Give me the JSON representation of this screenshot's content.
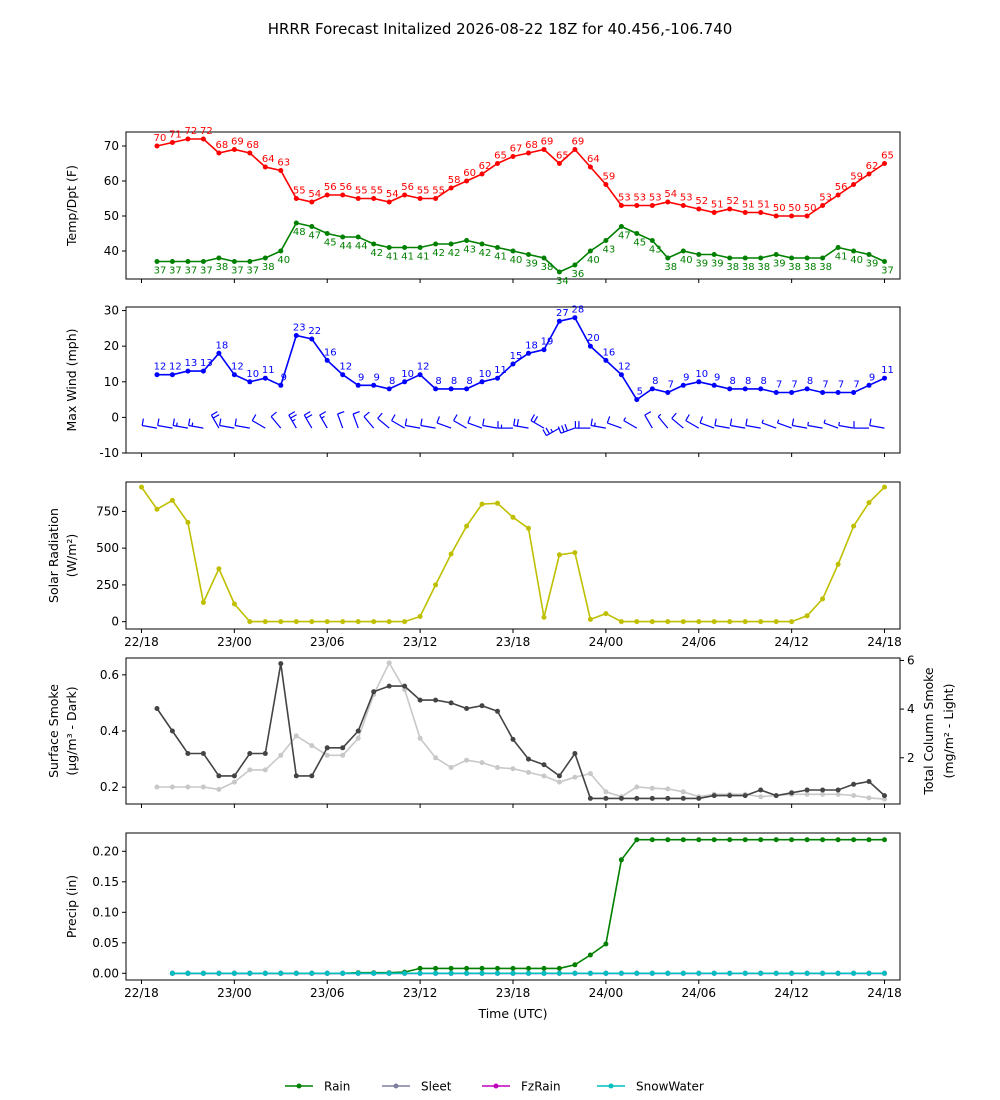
{
  "title": "HRRR Forecast Initalized 2026-08-22 18Z for 40.456,-106.740",
  "colors": {
    "temp": "#ff0000",
    "dew": "#008000",
    "wind": "#0000ff",
    "solar": "#bfbf00",
    "smoke_dark": "#444444",
    "smoke_light": "#c8c8c8",
    "rain": "#008000",
    "sleet": "#7f7f9f",
    "fzrain": "#bf00bf",
    "snow": "#00bfbf"
  },
  "x_ticks": [
    "22/18",
    "23/00",
    "23/06",
    "23/12",
    "23/18",
    "24/00",
    "24/06",
    "24/12",
    "24/18"
  ],
  "x_axis_label": "Time (UTC)",
  "chart_data": [
    {
      "type": "line",
      "ylabel": "Temp/Dpt (F)",
      "ylim": [
        32,
        74
      ],
      "yticks": [
        40,
        50,
        60,
        70
      ],
      "x": [
        1,
        2,
        3,
        4,
        5,
        6,
        7,
        8,
        9,
        10,
        11,
        12,
        13,
        14,
        15,
        16,
        17,
        18,
        19,
        20,
        21,
        22,
        23,
        24,
        25,
        26,
        27,
        28,
        29,
        30,
        31,
        32,
        33,
        34,
        35,
        36,
        37,
        38,
        39,
        40,
        41,
        42,
        43,
        44,
        45,
        46,
        47,
        48
      ],
      "series": [
        {
          "key": "temp",
          "labels": "above",
          "values": [
            70,
            71,
            72,
            72,
            68,
            69,
            68,
            64,
            63,
            55,
            54,
            56,
            56,
            55,
            55,
            54,
            56,
            55,
            55,
            58,
            60,
            62,
            65,
            67,
            68,
            69,
            65,
            69,
            64,
            59,
            53,
            53,
            53,
            54,
            53,
            52,
            51,
            52,
            51,
            51,
            50,
            50,
            50,
            53,
            56,
            59,
            62,
            65
          ]
        },
        {
          "key": "dew",
          "labels": "below",
          "values": [
            37,
            37,
            37,
            37,
            38,
            37,
            37,
            38,
            40,
            48,
            47,
            45,
            44,
            44,
            42,
            41,
            41,
            41,
            42,
            42,
            43,
            42,
            41,
            40,
            39,
            38,
            34,
            36,
            40,
            43,
            47,
            45,
            43,
            38,
            40,
            39,
            39,
            38,
            38,
            38,
            39,
            38,
            38,
            38,
            41,
            40,
            39,
            37
          ]
        }
      ]
    },
    {
      "type": "line",
      "ylabel": "Max Wind (mph)",
      "ylim": [
        -10,
        31
      ],
      "yticks": [
        -10,
        0,
        10,
        20,
        30
      ],
      "x": [
        1,
        2,
        3,
        4,
        5,
        6,
        7,
        8,
        9,
        10,
        11,
        12,
        13,
        14,
        15,
        16,
        17,
        18,
        19,
        20,
        21,
        22,
        23,
        24,
        25,
        26,
        27,
        28,
        29,
        30,
        31,
        32,
        33,
        34,
        35,
        36,
        37,
        38,
        39,
        40,
        41,
        42,
        43,
        44,
        45,
        46,
        47,
        48
      ],
      "series": [
        {
          "key": "wind",
          "labels": "above",
          "values": [
            12,
            12,
            13,
            13,
            18,
            12,
            10,
            11,
            9,
            23,
            22,
            16,
            12,
            9,
            9,
            8,
            10,
            12,
            8,
            8,
            8,
            10,
            11,
            15,
            18,
            19,
            27,
            28,
            20,
            16,
            12,
            5,
            8,
            7,
            9,
            10,
            9,
            8,
            8,
            8,
            7,
            7,
            8,
            7,
            7,
            7,
            9,
            11
          ]
        }
      ],
      "barb_dir": [
        280,
        280,
        280,
        280,
        330,
        280,
        280,
        300,
        320,
        330,
        330,
        330,
        340,
        340,
        320,
        310,
        300,
        280,
        280,
        290,
        300,
        290,
        280,
        270,
        280,
        300,
        240,
        250,
        270,
        280,
        290,
        300,
        330,
        320,
        310,
        300,
        290,
        280,
        280,
        280,
        290,
        290,
        280,
        280,
        290,
        280,
        270,
        280
      ]
    },
    {
      "type": "line",
      "ylabel": "Solar Radiation",
      "yunit": "(W/m²)",
      "ylim": [
        -50,
        950
      ],
      "yticks": [
        0,
        250,
        500,
        750
      ],
      "x": [
        0,
        1,
        2,
        3,
        4,
        5,
        6,
        7,
        8,
        9,
        10,
        11,
        12,
        13,
        14,
        15,
        16,
        17,
        18,
        19,
        20,
        21,
        22,
        23,
        24,
        25,
        26,
        27,
        28,
        29,
        30,
        31,
        32,
        33,
        34,
        35,
        36,
        37,
        38,
        39,
        40,
        41,
        42,
        43,
        44,
        45,
        46,
        47,
        48
      ],
      "series": [
        {
          "key": "solar",
          "labels": "none",
          "values": [
            915,
            765,
            825,
            675,
            130,
            360,
            120,
            0,
            0,
            0,
            0,
            0,
            0,
            0,
            0,
            0,
            0,
            0,
            35,
            250,
            460,
            650,
            800,
            805,
            710,
            635,
            30,
            455,
            470,
            15,
            55,
            0,
            0,
            0,
            0,
            0,
            0,
            0,
            0,
            0,
            0,
            0,
            0,
            40,
            155,
            390,
            650,
            810,
            915
          ]
        }
      ]
    },
    {
      "type": "line",
      "ylabel": "Surface Smoke",
      "yunit": "(μg/m³ - Dark)",
      "ylabel_right": "Total Column Smoke",
      "yunit_right": "(mg/m² - Light)",
      "ylim": [
        0.14,
        0.66
      ],
      "yticks": [
        0.2,
        0.4,
        0.6
      ],
      "ylim_right": [
        0.1,
        6.1
      ],
      "yticks_right": [
        2,
        4,
        6
      ],
      "x": [
        1,
        2,
        3,
        4,
        5,
        6,
        7,
        8,
        9,
        10,
        11,
        12,
        13,
        14,
        15,
        16,
        17,
        18,
        19,
        20,
        21,
        22,
        23,
        24,
        25,
        26,
        27,
        28,
        29,
        30,
        31,
        32,
        33,
        34,
        35,
        36,
        37,
        38,
        39,
        40,
        41,
        42,
        43,
        44,
        45,
        46,
        47,
        48
      ],
      "series": [
        {
          "key": "smoke_light",
          "axis": "right",
          "labels": "none",
          "values": [
            0.8,
            0.8,
            0.8,
            0.8,
            0.7,
            1.0,
            1.5,
            1.5,
            2.1,
            2.9,
            2.5,
            2.1,
            2.1,
            2.8,
            4.6,
            5.9,
            4.8,
            2.8,
            2.0,
            1.6,
            1.9,
            1.8,
            1.6,
            1.55,
            1.4,
            1.25,
            1.0,
            1.2,
            1.35,
            0.6,
            0.4,
            0.8,
            0.75,
            0.72,
            0.6,
            0.4,
            0.5,
            0.5,
            0.5,
            0.4,
            0.45,
            0.5,
            0.5,
            0.5,
            0.5,
            0.45,
            0.35,
            0.3
          ]
        },
        {
          "key": "smoke_dark",
          "axis": "left",
          "labels": "none",
          "values": [
            0.48,
            0.4,
            0.32,
            0.32,
            0.24,
            0.24,
            0.32,
            0.32,
            0.64,
            0.24,
            0.24,
            0.34,
            0.34,
            0.4,
            0.54,
            0.56,
            0.56,
            0.51,
            0.51,
            0.5,
            0.48,
            0.49,
            0.47,
            0.37,
            0.3,
            0.28,
            0.24,
            0.32,
            0.16,
            0.16,
            0.16,
            0.16,
            0.16,
            0.16,
            0.16,
            0.16,
            0.17,
            0.17,
            0.17,
            0.19,
            0.17,
            0.18,
            0.19,
            0.19,
            0.19,
            0.21,
            0.22,
            0.17
          ]
        }
      ]
    },
    {
      "type": "line",
      "ylabel": "Precip (in)",
      "ylim": [
        -0.011,
        0.23
      ],
      "yticks": [
        0.0,
        0.05,
        0.1,
        0.15,
        0.2
      ],
      "x": [
        2,
        3,
        4,
        5,
        6,
        7,
        8,
        9,
        10,
        11,
        12,
        13,
        14,
        15,
        16,
        17,
        18,
        19,
        20,
        21,
        22,
        23,
        24,
        25,
        26,
        27,
        28,
        29,
        30,
        31,
        32,
        33,
        34,
        35,
        36,
        37,
        38,
        39,
        40,
        41,
        42,
        43,
        44,
        45,
        46,
        47,
        48
      ],
      "series": [
        {
          "key": "rain",
          "name": "Rain",
          "labels": "none",
          "values": [
            0,
            0,
            0,
            0,
            0,
            0,
            0,
            0,
            0,
            0,
            0,
            0,
            0.001,
            0.001,
            0.001,
            0.002,
            0.008,
            0.008,
            0.008,
            0.008,
            0.008,
            0.008,
            0.008,
            0.008,
            0.008,
            0.008,
            0.014,
            0.03,
            0.048,
            0.186,
            0.219,
            0.219,
            0.219,
            0.219,
            0.219,
            0.219,
            0.219,
            0.219,
            0.219,
            0.219,
            0.219,
            0.219,
            0.219,
            0.219,
            0.219,
            0.219,
            0.219
          ]
        },
        {
          "key": "sleet",
          "name": "Sleet",
          "labels": "none",
          "values": [
            0,
            0,
            0,
            0,
            0,
            0,
            0,
            0,
            0,
            0,
            0,
            0,
            0,
            0,
            0,
            0,
            0,
            0,
            0,
            0,
            0,
            0,
            0,
            0,
            0,
            0,
            0,
            0,
            0,
            0,
            0,
            0,
            0,
            0,
            0,
            0,
            0,
            0,
            0,
            0,
            0,
            0,
            0,
            0,
            0,
            0,
            0
          ]
        },
        {
          "key": "fzrain",
          "name": "FzRain",
          "labels": "none",
          "values": [
            0,
            0,
            0,
            0,
            0,
            0,
            0,
            0,
            0,
            0,
            0,
            0,
            0,
            0,
            0,
            0,
            0,
            0,
            0,
            0,
            0,
            0,
            0,
            0,
            0,
            0,
            0,
            0,
            0,
            0,
            0,
            0,
            0,
            0,
            0,
            0,
            0,
            0,
            0,
            0,
            0,
            0,
            0,
            0,
            0,
            0,
            0
          ]
        },
        {
          "key": "snow",
          "name": "SnowWater",
          "labels": "none",
          "values": [
            0,
            0,
            0,
            0,
            0,
            0,
            0,
            0,
            0,
            0,
            0,
            0,
            0,
            0,
            0,
            0,
            0,
            0,
            0,
            0,
            0,
            0,
            0,
            0,
            0,
            0,
            0,
            0,
            0,
            0,
            0,
            0,
            0,
            0,
            0,
            0,
            0,
            0,
            0,
            0,
            0,
            0,
            0,
            0,
            0,
            0,
            0
          ]
        }
      ]
    }
  ]
}
